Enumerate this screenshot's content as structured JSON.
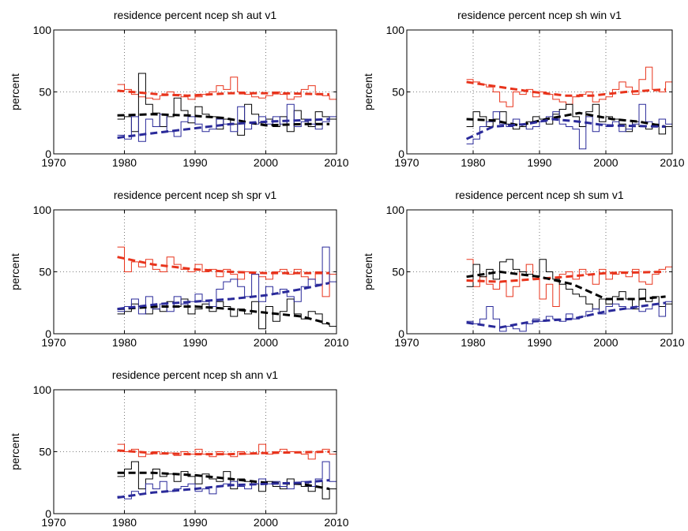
{
  "figure": {
    "background": "#ffffff",
    "colors": {
      "red": "#e8341c",
      "black": "#000000",
      "blue": "#2a2a9a"
    }
  },
  "chart_data": [
    {
      "type": "line",
      "title": "residence percent ncep sh aut v1",
      "xlabel": "",
      "ylabel": "percent",
      "xlim": [
        1970,
        2010
      ],
      "ylim": [
        0,
        100
      ],
      "xticks": [
        1970,
        1980,
        1990,
        2000,
        2010
      ],
      "yticks": [
        0,
        50,
        100
      ],
      "grid": true,
      "x_start": 1979,
      "series": [
        {
          "color": "#e8341c",
          "style": "step",
          "values": [
            56,
            52,
            48,
            46,
            45,
            44,
            47,
            50,
            48,
            46,
            44,
            46,
            48,
            50,
            55,
            52,
            62,
            50,
            48,
            46,
            45,
            47,
            50,
            48,
            44,
            46,
            52,
            55,
            48,
            47,
            44
          ]
        },
        {
          "color": "#000000",
          "style": "step",
          "values": [
            28,
            30,
            18,
            65,
            40,
            33,
            22,
            30,
            45,
            35,
            25,
            38,
            32,
            30,
            20,
            28,
            24,
            15,
            40,
            32,
            25,
            28,
            22,
            30,
            18,
            35,
            28,
            22,
            34,
            30,
            28
          ]
        },
        {
          "color": "#2a2a9a",
          "style": "step",
          "values": [
            15,
            12,
            30,
            10,
            28,
            22,
            32,
            18,
            14,
            26,
            30,
            24,
            18,
            20,
            28,
            24,
            18,
            38,
            20,
            24,
            30,
            24,
            30,
            24,
            40,
            22,
            26,
            24,
            20,
            26,
            30
          ]
        },
        {
          "color": "#e8341c",
          "style": "trend",
          "values": [
            [
              1979,
              51
            ],
            [
              1985,
              48
            ],
            [
              1989,
              47
            ],
            [
              1995,
              49
            ],
            [
              2002,
              49
            ],
            [
              2009,
              48
            ]
          ]
        },
        {
          "color": "#000000",
          "style": "trend",
          "values": [
            [
              1979,
              31
            ],
            [
              1984,
              32
            ],
            [
              1989,
              31
            ],
            [
              1994,
              29
            ],
            [
              2000,
              23
            ],
            [
              2005,
              24
            ],
            [
              2009,
              24
            ]
          ]
        },
        {
          "color": "#2a2a9a",
          "style": "trend",
          "values": [
            [
              1979,
              13
            ],
            [
              1983,
              16
            ],
            [
              1989,
              20
            ],
            [
              1995,
              24
            ],
            [
              2000,
              26
            ],
            [
              2009,
              28
            ]
          ]
        }
      ]
    },
    {
      "type": "line",
      "title": "residence percent ncep sh win v1",
      "xlabel": "",
      "ylabel": "percent",
      "xlim": [
        1970,
        2010
      ],
      "ylim": [
        0,
        100
      ],
      "xticks": [
        1970,
        1980,
        1990,
        2000,
        2010
      ],
      "yticks": [
        0,
        50,
        100
      ],
      "grid": true,
      "x_start": 1979,
      "series": [
        {
          "color": "#e8341c",
          "style": "step",
          "values": [
            60,
            58,
            56,
            54,
            50,
            42,
            38,
            50,
            48,
            52,
            46,
            50,
            48,
            44,
            42,
            40,
            46,
            48,
            50,
            42,
            44,
            46,
            52,
            58,
            54,
            48,
            60,
            70,
            52,
            50,
            58
          ]
        },
        {
          "color": "#000000",
          "style": "step",
          "values": [
            22,
            34,
            30,
            22,
            28,
            34,
            24,
            20,
            22,
            26,
            30,
            28,
            24,
            32,
            36,
            40,
            30,
            22,
            34,
            40,
            26,
            30,
            28,
            24,
            18,
            26,
            22,
            20,
            24,
            16,
            22
          ]
        },
        {
          "color": "#2a2a9a",
          "style": "step",
          "values": [
            8,
            12,
            22,
            26,
            34,
            24,
            22,
            28,
            24,
            20,
            22,
            26,
            30,
            34,
            24,
            22,
            20,
            4,
            30,
            18,
            24,
            22,
            26,
            18,
            20,
            24,
            40,
            26,
            22,
            28,
            24
          ]
        },
        {
          "color": "#e8341c",
          "style": "trend",
          "values": [
            [
              1979,
              58
            ],
            [
              1984,
              54
            ],
            [
              1989,
              50
            ],
            [
              1994,
              47
            ],
            [
              1998,
              47
            ],
            [
              2003,
              50
            ],
            [
              2009,
              52
            ]
          ]
        },
        {
          "color": "#000000",
          "style": "trend",
          "values": [
            [
              1979,
              28
            ],
            [
              1983,
              27
            ],
            [
              1987,
              23
            ],
            [
              1991,
              28
            ],
            [
              1996,
              33
            ],
            [
              2001,
              28
            ],
            [
              2005,
              26
            ],
            [
              2009,
              22
            ]
          ]
        },
        {
          "color": "#2a2a9a",
          "style": "trend",
          "values": [
            [
              1979,
              12
            ],
            [
              1983,
              22
            ],
            [
              1988,
              24
            ],
            [
              1992,
              28
            ],
            [
              1996,
              26
            ],
            [
              2000,
              23
            ],
            [
              2009,
              22
            ]
          ]
        }
      ]
    },
    {
      "type": "line",
      "title": "residence percent ncep sh spr v1",
      "xlabel": "",
      "ylabel": "percent",
      "xlim": [
        1970,
        2010
      ],
      "ylim": [
        0,
        100
      ],
      "xticks": [
        1970,
        1980,
        1990,
        2000,
        2010
      ],
      "yticks": [
        0,
        50,
        100
      ],
      "grid": true,
      "x_start": 1979,
      "series": [
        {
          "color": "#e8341c",
          "style": "step",
          "values": [
            70,
            50,
            58,
            54,
            60,
            52,
            50,
            62,
            56,
            52,
            50,
            56,
            50,
            52,
            46,
            52,
            48,
            44,
            50,
            48,
            46,
            44,
            50,
            52,
            48,
            52,
            46,
            44,
            50,
            30,
            48
          ]
        },
        {
          "color": "#000000",
          "style": "step",
          "values": [
            16,
            18,
            24,
            22,
            16,
            20,
            18,
            26,
            22,
            28,
            16,
            20,
            24,
            18,
            26,
            22,
            14,
            20,
            16,
            26,
            4,
            22,
            10,
            18,
            28,
            16,
            12,
            18,
            16,
            8,
            6
          ]
        },
        {
          "color": "#2a2a9a",
          "style": "step",
          "values": [
            18,
            22,
            28,
            16,
            30,
            20,
            24,
            18,
            30,
            24,
            26,
            32,
            26,
            22,
            36,
            42,
            44,
            38,
            30,
            48,
            26,
            38,
            32,
            36,
            30,
            26,
            38,
            44,
            40,
            70,
            42
          ]
        },
        {
          "color": "#e8341c",
          "style": "trend",
          "values": [
            [
              1979,
              62
            ],
            [
              1984,
              56
            ],
            [
              1990,
              52
            ],
            [
              1995,
              50
            ],
            [
              2000,
              49
            ],
            [
              2009,
              49
            ]
          ]
        },
        {
          "color": "#000000",
          "style": "trend",
          "values": [
            [
              1979,
              20
            ],
            [
              1985,
              22
            ],
            [
              1990,
              22
            ],
            [
              1995,
              20
            ],
            [
              2000,
              17
            ],
            [
              2005,
              14
            ],
            [
              2009,
              8
            ]
          ]
        },
        {
          "color": "#2a2a9a",
          "style": "trend",
          "values": [
            [
              1979,
              20
            ],
            [
              1985,
              24
            ],
            [
              1990,
              26
            ],
            [
              1995,
              28
            ],
            [
              2000,
              31
            ],
            [
              2005,
              36
            ],
            [
              2009,
              41
            ]
          ]
        }
      ]
    },
    {
      "type": "line",
      "title": "residence percent ncep sh sum v1",
      "xlabel": "",
      "ylabel": "percent",
      "xlim": [
        1970,
        2010
      ],
      "ylim": [
        0,
        100
      ],
      "xticks": [
        1970,
        1980,
        1990,
        2000,
        2010
      ],
      "yticks": [
        0,
        50,
        100
      ],
      "grid": true,
      "x_start": 1979,
      "series": [
        {
          "color": "#e8341c",
          "style": "step",
          "values": [
            60,
            38,
            46,
            40,
            36,
            42,
            30,
            38,
            50,
            56,
            44,
            28,
            40,
            22,
            48,
            50,
            44,
            52,
            48,
            40,
            52,
            44,
            48,
            50,
            46,
            52,
            42,
            40,
            48,
            52,
            54
          ]
        },
        {
          "color": "#000000",
          "style": "step",
          "values": [
            38,
            56,
            46,
            52,
            44,
            58,
            60,
            52,
            50,
            48,
            46,
            60,
            50,
            44,
            40,
            36,
            32,
            30,
            24,
            20,
            28,
            24,
            30,
            34,
            28,
            20,
            36,
            26,
            30,
            22,
            24
          ]
        },
        {
          "color": "#2a2a9a",
          "style": "step",
          "values": [
            10,
            8,
            12,
            22,
            12,
            2,
            6,
            4,
            2,
            8,
            12,
            10,
            14,
            12,
            10,
            16,
            12,
            14,
            18,
            20,
            16,
            22,
            24,
            22,
            20,
            22,
            18,
            20,
            24,
            14,
            26
          ]
        },
        {
          "color": "#e8341c",
          "style": "trend",
          "values": [
            [
              1979,
              43
            ],
            [
              1984,
              42
            ],
            [
              1989,
              44
            ],
            [
              1994,
              46
            ],
            [
              2000,
              49
            ],
            [
              2009,
              50
            ]
          ]
        },
        {
          "color": "#000000",
          "style": "trend",
          "values": [
            [
              1979,
              46
            ],
            [
              1984,
              50
            ],
            [
              1990,
              46
            ],
            [
              1995,
              40
            ],
            [
              2000,
              28
            ],
            [
              2005,
              28
            ],
            [
              2009,
              30
            ]
          ]
        },
        {
          "color": "#2a2a9a",
          "style": "trend",
          "values": [
            [
              1979,
              9
            ],
            [
              1984,
              5
            ],
            [
              1989,
              10
            ],
            [
              1995,
              12
            ],
            [
              2000,
              18
            ],
            [
              2005,
              22
            ],
            [
              2009,
              25
            ]
          ]
        }
      ]
    },
    {
      "type": "line",
      "title": "residence percent ncep sh ann v1",
      "xlabel": "",
      "ylabel": "percent",
      "xlim": [
        1970,
        2010
      ],
      "ylim": [
        0,
        100
      ],
      "xticks": [
        1970,
        1980,
        1990,
        2000,
        2010
      ],
      "yticks": [
        0,
        50,
        100
      ],
      "grid": true,
      "x_start": 1979,
      "series": [
        {
          "color": "#e8341c",
          "style": "step",
          "values": [
            56,
            50,
            52,
            46,
            48,
            50,
            48,
            49,
            47,
            50,
            48,
            52,
            48,
            46,
            50,
            48,
            46,
            50,
            48,
            48,
            56,
            48,
            50,
            52,
            50,
            50,
            48,
            44,
            50,
            52,
            48
          ]
        },
        {
          "color": "#000000",
          "style": "step",
          "values": [
            30,
            36,
            42,
            20,
            28,
            36,
            30,
            32,
            26,
            34,
            30,
            24,
            32,
            28,
            26,
            34,
            20,
            28,
            26,
            24,
            18,
            26,
            22,
            20,
            28,
            24,
            22,
            18,
            26,
            12,
            20
          ]
        },
        {
          "color": "#2a2a9a",
          "style": "step",
          "values": [
            14,
            12,
            18,
            16,
            24,
            20,
            26,
            18,
            20,
            22,
            24,
            18,
            20,
            16,
            22,
            24,
            26,
            22,
            20,
            24,
            28,
            24,
            26,
            22,
            20,
            24,
            26,
            22,
            28,
            42,
            26
          ]
        },
        {
          "color": "#e8341c",
          "style": "trend",
          "values": [
            [
              1979,
              51
            ],
            [
              1984,
              49
            ],
            [
              1989,
              48
            ],
            [
              1995,
              48
            ],
            [
              2000,
              49
            ],
            [
              2009,
              50
            ]
          ]
        },
        {
          "color": "#000000",
          "style": "trend",
          "values": [
            [
              1979,
              33
            ],
            [
              1984,
              33
            ],
            [
              1990,
              31
            ],
            [
              1995,
              28
            ],
            [
              2000,
              25
            ],
            [
              2005,
              24
            ],
            [
              2009,
              20
            ]
          ]
        },
        {
          "color": "#2a2a9a",
          "style": "trend",
          "values": [
            [
              1979,
              13
            ],
            [
              1984,
              17
            ],
            [
              1990,
              20
            ],
            [
              1995,
              23
            ],
            [
              2000,
              24
            ],
            [
              2005,
              25
            ],
            [
              2009,
              27
            ]
          ]
        }
      ]
    }
  ]
}
